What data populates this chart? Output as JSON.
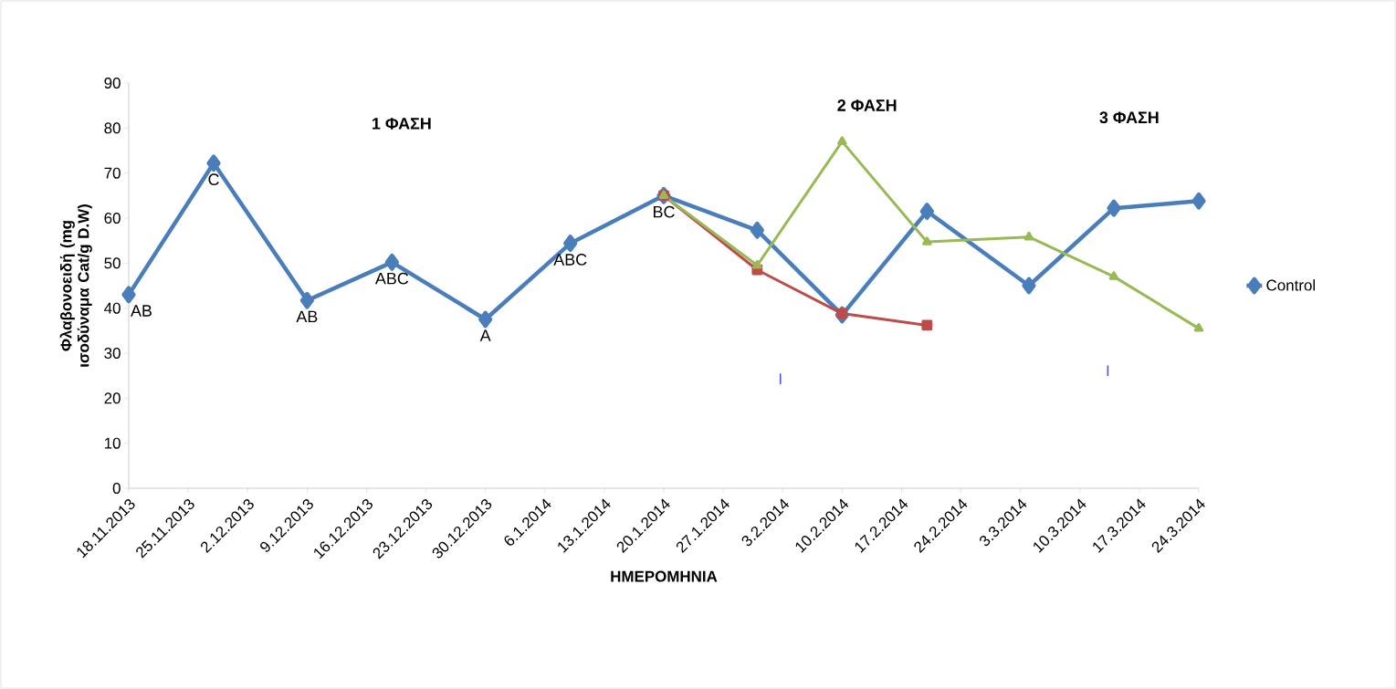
{
  "chart_data": {
    "type": "line",
    "xlabel": "ΗΜΕΡΟΜΗΝΙΑ",
    "ylabel": "Φλαβονοειδή (mg ισοδύναμα Cat/g D.W)",
    "x": [
      "2013-11-18",
      "2013-11-28",
      "2013-12-09",
      "2013-12-19",
      "2013-12-30",
      "2014-01-09",
      "2014-01-20",
      "2014-01-31",
      "2014-02-10",
      "2014-02-20",
      "2014-03-04",
      "2014-03-14",
      "2014-03-24"
    ],
    "series": [
      {
        "name": "Control",
        "color": "#4a7ebb",
        "marker": "diamond",
        "values": [
          43,
          72.2,
          41.7,
          50.2,
          37.5,
          54.4,
          65,
          57.3,
          38.5,
          61.5,
          45,
          62.2,
          63.8
        ]
      },
      {
        "color": "#be4b48",
        "marker": "square",
        "x": [
          "2014-01-20",
          "2014-01-31",
          "2014-02-10",
          "2014-02-20"
        ],
        "values": [
          65,
          48.5,
          38.8,
          36.2
        ]
      },
      {
        "color": "#98b954",
        "marker": "triangle",
        "x": [
          "2014-01-20",
          "2014-01-31",
          "2014-02-10",
          "2014-02-20",
          "2014-03-04",
          "2014-03-14",
          "2014-03-24"
        ],
        "values": [
          65,
          49.5,
          77,
          54.7,
          55.8,
          47,
          35.5
        ]
      }
    ],
    "xlim": [
      "2013-11-18",
      "2014-03-24"
    ],
    "xticks": [
      {
        "value": "2013-11-18",
        "label": "18.11.2013"
      },
      {
        "value": "2013-11-25",
        "label": "25.11.2013"
      },
      {
        "value": "2013-12-02",
        "label": "2.12.2013"
      },
      {
        "value": "2013-12-09",
        "label": "9.12.2013"
      },
      {
        "value": "2013-12-16",
        "label": "16.12.2013"
      },
      {
        "value": "2013-12-23",
        "label": "23.12.2013"
      },
      {
        "value": "2013-12-30",
        "label": "30.12.2013"
      },
      {
        "value": "2014-01-06",
        "label": "6.1.2014"
      },
      {
        "value": "2014-01-13",
        "label": "13.1.2014"
      },
      {
        "value": "2014-01-20",
        "label": "20.1.2014"
      },
      {
        "value": "2014-01-27",
        "label": "27.1.2014"
      },
      {
        "value": "2014-02-03",
        "label": "3.2.2014"
      },
      {
        "value": "2014-02-10",
        "label": "10.2.2014"
      },
      {
        "value": "2014-02-17",
        "label": "17.2.2014"
      },
      {
        "value": "2014-02-24",
        "label": "24.2.2014"
      },
      {
        "value": "2014-03-03",
        "label": "3.3.2014"
      },
      {
        "value": "2014-03-10",
        "label": "10.3.2014"
      },
      {
        "value": "2014-03-17",
        "label": "17.3.2014"
      },
      {
        "value": "2014-03-24",
        "label": "24.3.2014"
      }
    ],
    "ylim": [
      0,
      90
    ],
    "yticks": [
      0,
      10,
      20,
      30,
      40,
      50,
      60,
      70,
      80,
      90
    ],
    "grid": false,
    "legend": "right",
    "line_style": "solid",
    "annotations": [
      {
        "text": "AB",
        "x": "2013-11-18",
        "y": 43
      },
      {
        "text": "C",
        "x": "2013-11-28",
        "y": 72.2
      },
      {
        "text": "AB",
        "x": "2013-12-09",
        "y": 41.7
      },
      {
        "text": "ABC",
        "x": "2013-12-19",
        "y": 50.2
      },
      {
        "text": "A",
        "x": "2013-12-30",
        "y": 37.5
      },
      {
        "text": "ABC",
        "x": "2014-01-09",
        "y": 54.4
      },
      {
        "text": "BC",
        "x": "2014-01-20",
        "y": 65
      },
      "I",
      "I",
      "1 ΦΑΣΗ",
      "2 ΦΑΣΗ",
      "3 ΦΑΣΗ"
    ]
  }
}
